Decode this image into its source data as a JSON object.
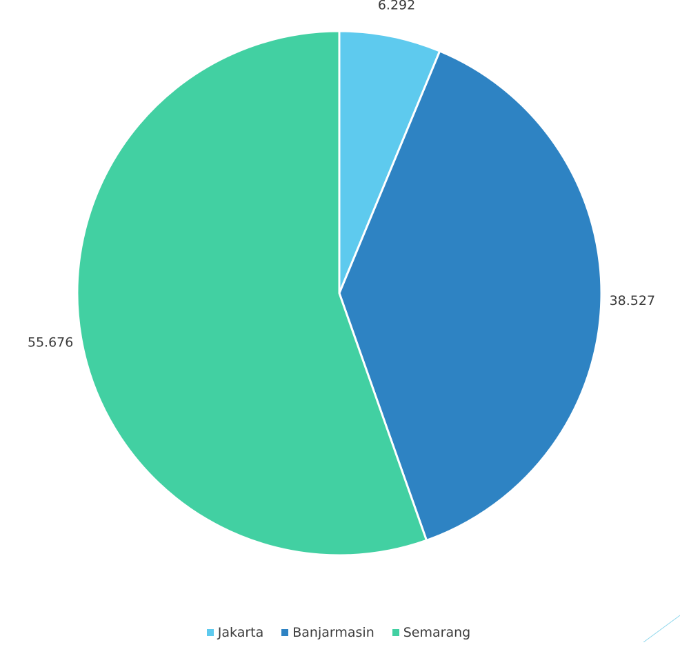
{
  "chart_data": {
    "type": "pie",
    "title": "",
    "categories": [
      "Jakarta",
      "Banjarmasin",
      "Semarang"
    ],
    "values": [
      6.292,
      38.527,
      55.676
    ],
    "value_labels": [
      "6.292",
      "38.527",
      "55.676"
    ],
    "colors": [
      "#5ECAEE",
      "#2E83C3",
      "#42D0A2"
    ],
    "start_angle": "12 o'clock",
    "direction": "clockwise",
    "legend_position": "bottom-center",
    "legend": [
      {
        "label": "Jakarta",
        "color": "#5ECAEE"
      },
      {
        "label": "Banjarmasin",
        "color": "#2E83C3"
      },
      {
        "label": "Semarang",
        "color": "#42D0A2"
      }
    ]
  }
}
